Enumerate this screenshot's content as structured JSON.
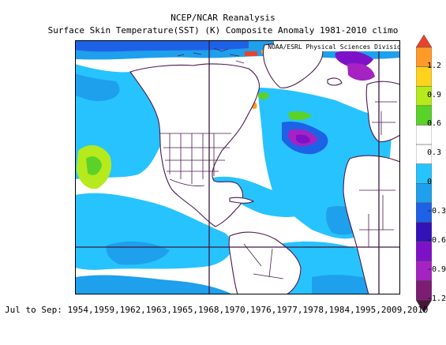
{
  "header": {
    "title": "NCEP/NCAR Reanalysis",
    "subtitle": "Surface Skin Temperature(SST) (K) Composite Anomaly 1981-2010 climo"
  },
  "map": {
    "credit": "NOAA/ESRL Physical Sciences Division",
    "colors": {
      "land": "#ffffff",
      "coastline": "#4a1a4e",
      "gridline": "#3b1a3e"
    }
  },
  "colorbar": {
    "ticks": [
      "1.2",
      "0.9",
      "0.6",
      "0.3",
      "0",
      "-0.3",
      "-0.6",
      "-0.9",
      "-1.2"
    ],
    "palette": [
      "#e8442c",
      "#ff9a2a",
      "#ffd21e",
      "#b6ea1c",
      "#5bd22a",
      "#ffffff",
      "#ffffff",
      "#27c3ff",
      "#1ea0ec",
      "#1d62e6",
      "#3312b8",
      "#7d11c8",
      "#a423c2",
      "#7c1c73",
      "#4a1638"
    ]
  },
  "footer": {
    "label": "Jul to Sep: 1954,1959,1962,1963,1965,1968,1970,1976,1977,1978,1984,1995,2009,2010"
  }
}
